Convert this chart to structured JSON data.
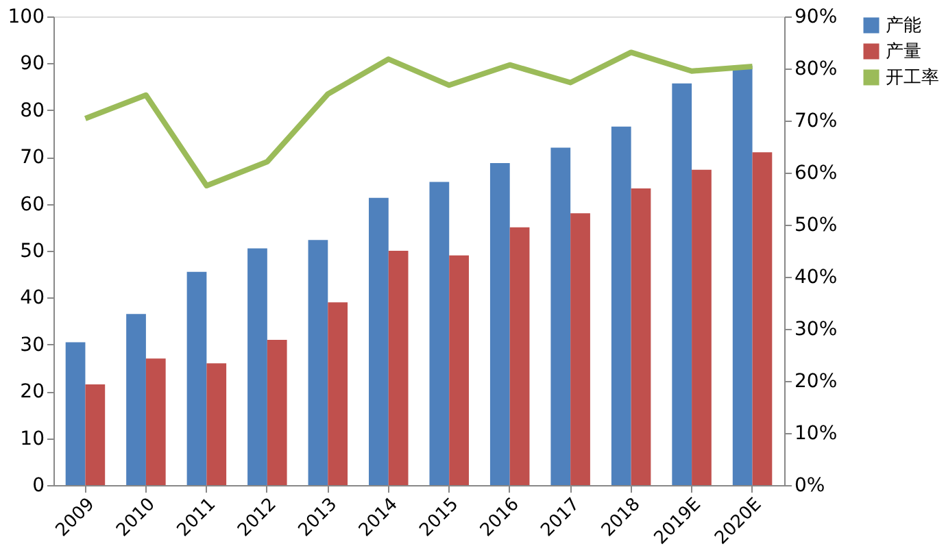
{
  "chart_data": {
    "type": "bar",
    "categories": [
      "2009",
      "2010",
      "2011",
      "2012",
      "2013",
      "2014",
      "2015",
      "2016",
      "2017",
      "2018",
      "2019E",
      "2020E"
    ],
    "series": [
      {
        "name": "产能",
        "color": "#4f81bd",
        "values": [
          30.5,
          36.5,
          45.5,
          50.5,
          52.3,
          61.3,
          64.7,
          68.7,
          72,
          76.5,
          85.7,
          89.5
        ]
      },
      {
        "name": "产量",
        "color": "#c0504d",
        "values": [
          21.5,
          27,
          26,
          31,
          39,
          50,
          49,
          55,
          58,
          63.3,
          67.3,
          71
        ]
      },
      {
        "name": "开工率",
        "color": "#9bbb59",
        "type": "line",
        "axis": "y2",
        "values": [
          70.4,
          74.9,
          57.5,
          62.1,
          75.1,
          81.8,
          76.8,
          80.7,
          77.3,
          83.1,
          79.5,
          80.4
        ]
      }
    ],
    "ylim": [
      0,
      100
    ],
    "yticks": [
      0,
      10,
      20,
      30,
      40,
      50,
      60,
      70,
      80,
      90,
      100
    ],
    "y2lim": [
      0,
      90
    ],
    "y2ticks": [
      {
        "value": 0,
        "label": "0%"
      },
      {
        "value": 10,
        "label": "10%"
      },
      {
        "value": 20,
        "label": "20%"
      },
      {
        "value": 30,
        "label": "30%"
      },
      {
        "value": 40,
        "label": "40%"
      },
      {
        "value": 50,
        "label": "50%"
      },
      {
        "value": 60,
        "label": "60%"
      },
      {
        "value": 70,
        "label": "70%"
      },
      {
        "value": 80,
        "label": "80%"
      },
      {
        "value": 90,
        "label": "90%"
      }
    ],
    "grid": false,
    "legend": "right",
    "line_style": "solid",
    "marker": "none"
  }
}
